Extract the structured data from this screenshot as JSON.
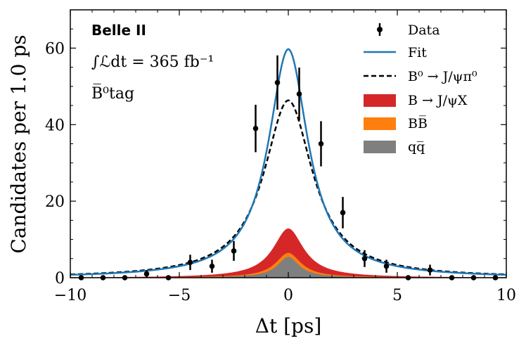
{
  "chart_data": {
    "type": "line",
    "xlabel": "Δt [ps]",
    "ylabel": "Candidates per 1.0 ps",
    "xlim": [
      -10,
      10
    ],
    "ylim": [
      0,
      70
    ],
    "x_ticks": [
      "−10",
      "−5",
      "0",
      "5",
      "10"
    ],
    "y_ticks": [
      "0",
      "20",
      "40",
      "60"
    ],
    "annotations": {
      "experiment": "Belle II",
      "lumi": "∫ℒdt = 365 fb⁻¹",
      "tag": "B̅⁰tag"
    },
    "legend": {
      "placement": "top-right",
      "entries": [
        {
          "key": "data",
          "label": "Data",
          "color": "#000000"
        },
        {
          "key": "fit",
          "label": "Fit",
          "color": "#1f77b4"
        },
        {
          "key": "signal",
          "label": "B⁰ → J/ψπ⁰",
          "color": "#000000"
        },
        {
          "key": "jpsix",
          "label": "B → J/ψX",
          "color": "#d62728"
        },
        {
          "key": "bb",
          "label": "BB̅",
          "color": "#ff7f0e"
        },
        {
          "key": "qq",
          "label": "qq̅",
          "color": "#7f7f7f"
        }
      ]
    },
    "data_points": [
      {
        "x": -9.5,
        "y": 0,
        "err": 0
      },
      {
        "x": -8.5,
        "y": 0,
        "err": 0
      },
      {
        "x": -7.5,
        "y": 0,
        "err": 0
      },
      {
        "x": -6.5,
        "y": 1,
        "err": 1.0
      },
      {
        "x": -5.5,
        "y": 0,
        "err": 0
      },
      {
        "x": -4.5,
        "y": 4,
        "err": 2.0
      },
      {
        "x": -3.5,
        "y": 3,
        "err": 1.7
      },
      {
        "x": -2.5,
        "y": 7,
        "err": 2.6
      },
      {
        "x": -1.5,
        "y": 39,
        "err": 6.2
      },
      {
        "x": -0.5,
        "y": 51,
        "err": 7.1
      },
      {
        "x": 0.5,
        "y": 48,
        "err": 6.9
      },
      {
        "x": 1.5,
        "y": 35,
        "err": 5.9
      },
      {
        "x": 2.5,
        "y": 17,
        "err": 4.1
      },
      {
        "x": 3.5,
        "y": 5,
        "err": 2.2
      },
      {
        "x": 4.5,
        "y": 3,
        "err": 1.7
      },
      {
        "x": 5.5,
        "y": 0,
        "err": 0
      },
      {
        "x": 6.5,
        "y": 2,
        "err": 1.4
      },
      {
        "x": 7.5,
        "y": 0,
        "err": 0
      },
      {
        "x": 8.5,
        "y": 0,
        "err": 0
      },
      {
        "x": 9.5,
        "y": 0,
        "err": 0
      }
    ],
    "components": {
      "fit": {
        "peak": 58,
        "width": 1.1
      },
      "signal": {
        "peak": 45,
        "width": 1.35
      },
      "jpsix": {
        "peak": 12.5,
        "width": 0.85
      },
      "bb": {
        "peak": 6.3,
        "width": 0.7
      },
      "qq": {
        "peak": 5.3,
        "width": 0.6
      }
    },
    "grid": false
  }
}
